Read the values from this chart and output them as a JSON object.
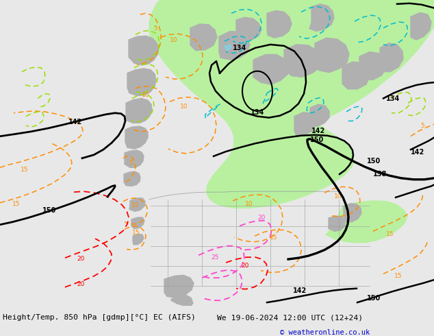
{
  "title_left": "Height/Temp. 850 hPa [gdmp][°C] EC (AIFS)",
  "title_right": "We 19-06-2024 12:00 UTC (12+24)",
  "copyright": "© weatheronline.co.uk",
  "bg_color": "#e8e8e8",
  "green_fill": "#b8f0a0",
  "gray_terrain": "#b0b0b0",
  "orange": "#FF8C00",
  "red": "#FF0000",
  "magenta": "#FF44CC",
  "cyan": "#00BBCC",
  "lime": "#99DD00",
  "fig_width": 6.34,
  "fig_height": 4.9,
  "dpi": 100
}
